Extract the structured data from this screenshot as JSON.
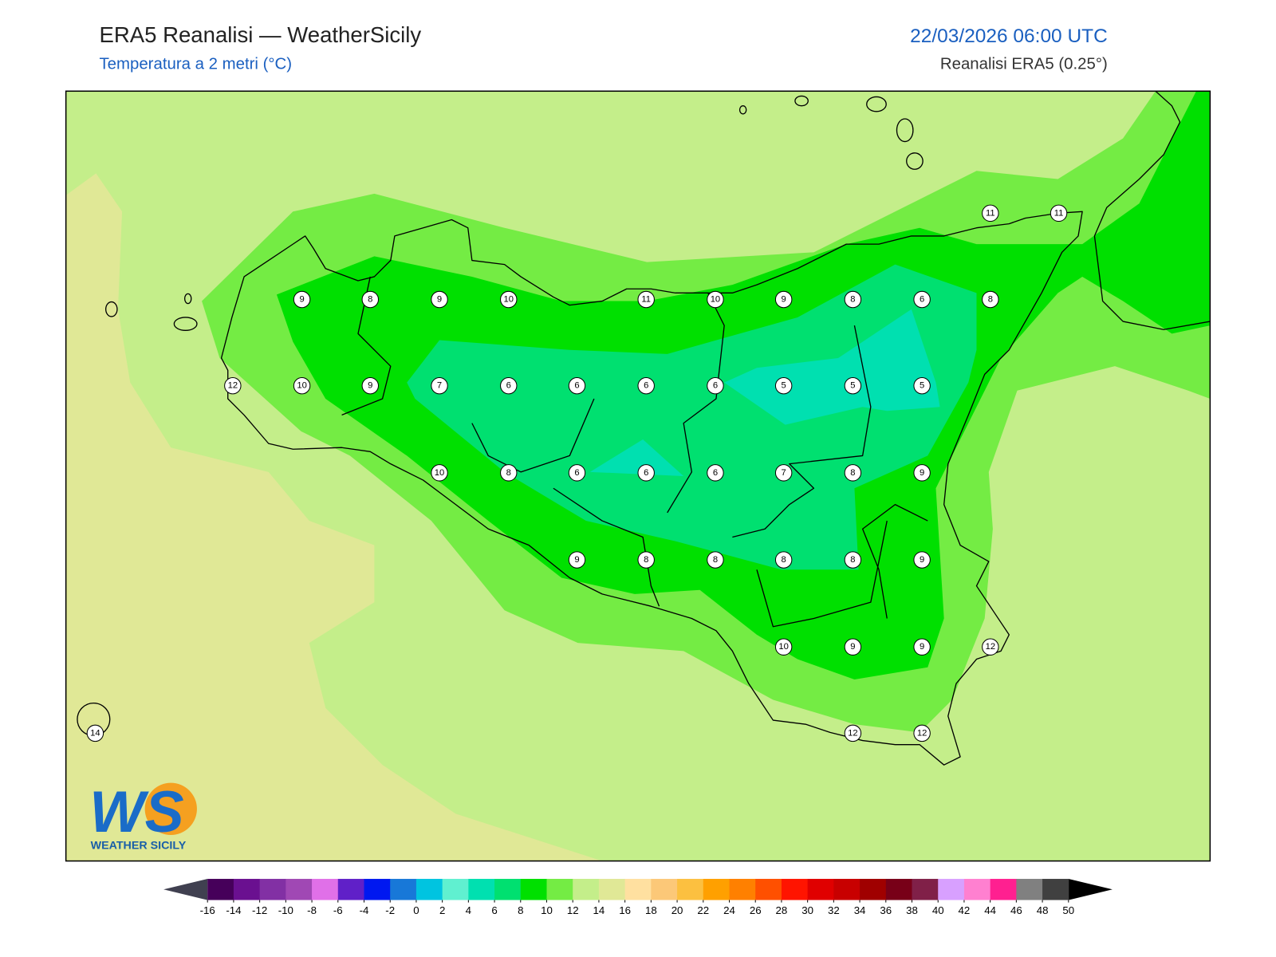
{
  "header": {
    "title": "ERA5 Reanalisi — WeatherSicily",
    "subtitle": "Temperatura a 2 metri (°C)",
    "datetime": "22/03/2026 06:00 UTC",
    "source": "Reanalisi ERA5 (0.25°)"
  },
  "stations": [
    11,
    11,
    9,
    8,
    9,
    10,
    11,
    10,
    9,
    8,
    6,
    8,
    12,
    10,
    9,
    7,
    6,
    6,
    6,
    6,
    5,
    5,
    5,
    10,
    8,
    6,
    6,
    6,
    7,
    8,
    9,
    9,
    8,
    8,
    8,
    8,
    9,
    10,
    9,
    9,
    12,
    14,
    12,
    12
  ],
  "colorbar": {
    "ticks": [
      -16,
      -14,
      -12,
      -10,
      -8,
      -6,
      -4,
      -2,
      0,
      2,
      4,
      6,
      8,
      10,
      12,
      14,
      16,
      18,
      20,
      22,
      24,
      26,
      28,
      30,
      32,
      34,
      36,
      38,
      40,
      42,
      44,
      46,
      48,
      50
    ],
    "colors": [
      "#46005a",
      "#6a1090",
      "#8230a4",
      "#a048b4",
      "#e070e8",
      "#6020c8",
      "#0018f0",
      "#1878d8",
      "#00c4e0",
      "#60f0d0",
      "#00e0b0",
      "#00e070",
      "#00e000",
      "#74ec44",
      "#c4ee8a",
      "#e0e896",
      "#ffe0a0",
      "#fcc878",
      "#fcc040",
      "#ffa000",
      "#ff8000",
      "#ff5000",
      "#ff1400",
      "#e00000",
      "#c80000",
      "#a00000",
      "#780018",
      "#802048",
      "#d8a0ff",
      "#ff80d0",
      "#ff2090",
      "#808080",
      "#404040"
    ],
    "under_color": "#404050",
    "over_color": "#000000"
  },
  "logo": {
    "mark": "WS",
    "name": "WEATHER SICILY"
  }
}
